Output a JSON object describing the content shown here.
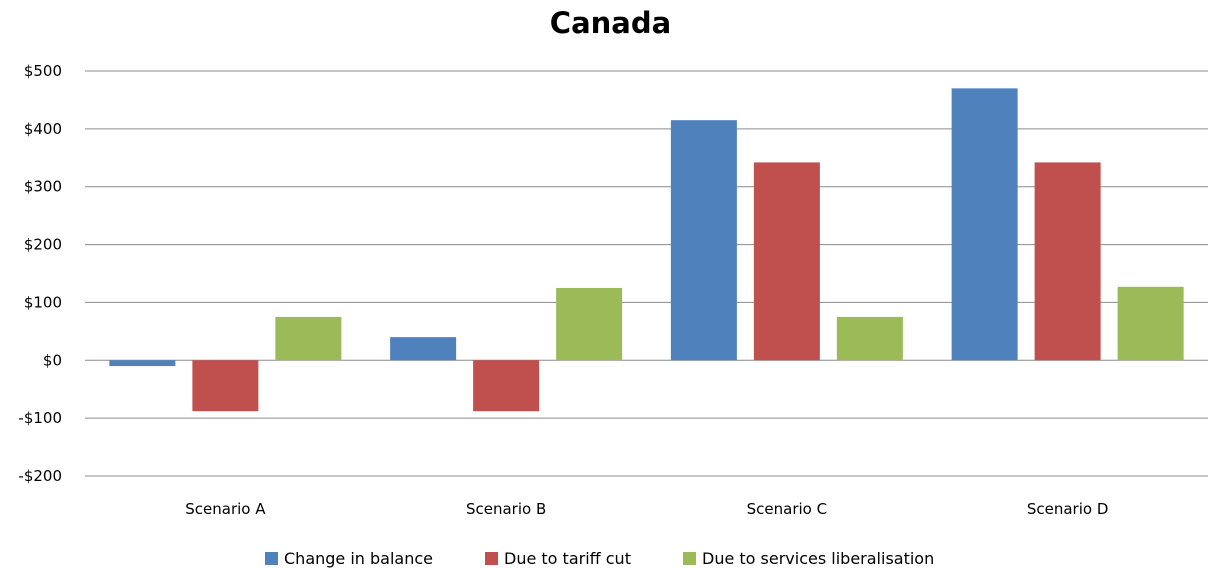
{
  "chart_data": {
    "type": "bar",
    "title": "Canada",
    "xlabel": "",
    "ylabel": "",
    "categories": [
      "Scenario A",
      "Scenario B",
      "Scenario C",
      "Scenario D"
    ],
    "series": [
      {
        "name": "Change in balance",
        "color": "#4f81bd",
        "values": [
          -10,
          40,
          415,
          470
        ]
      },
      {
        "name": "Due to tariff cut",
        "color": "#c0504d",
        "values": [
          -88,
          -88,
          342,
          342
        ]
      },
      {
        "name": "Due to services liberalisation",
        "color": "#9bbb59",
        "values": [
          75,
          125,
          75,
          127
        ]
      }
    ],
    "ylim": [
      -200,
      500
    ],
    "yticks": [
      500,
      400,
      300,
      200,
      100,
      0,
      -100,
      -200
    ],
    "ytick_labels": [
      "$500",
      "$400",
      "$300",
      "$200",
      "$100",
      "$0",
      "-$100",
      "-$200"
    ],
    "grid": true,
    "legend_position": "bottom"
  }
}
